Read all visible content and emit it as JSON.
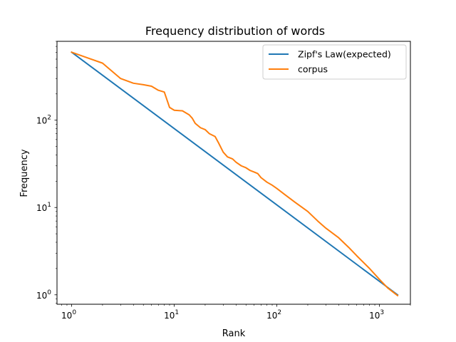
{
  "chart_data": {
    "type": "line",
    "title": "Frequency distribution of words",
    "xlabel": "Rank",
    "ylabel": "Frequency",
    "xscale": "log",
    "yscale": "log",
    "xlim": [
      0.72,
      2000
    ],
    "ylim": [
      0.78,
      800
    ],
    "xticks": [
      {
        "value": 1,
        "base": "10",
        "exp": "0"
      },
      {
        "value": 10,
        "base": "10",
        "exp": "1"
      },
      {
        "value": 100,
        "base": "10",
        "exp": "2"
      },
      {
        "value": 1000,
        "base": "10",
        "exp": "3"
      }
    ],
    "yticks": [
      {
        "value": 1,
        "base": "10",
        "exp": "0"
      },
      {
        "value": 10,
        "base": "10",
        "exp": "1"
      },
      {
        "value": 100,
        "base": "10",
        "exp": "2"
      }
    ],
    "grid": false,
    "legend_position": "top-right",
    "series": [
      {
        "name": "Zipf's Law(expected)",
        "color": "#1f77b4",
        "x": [
          1,
          1500
        ],
        "y": [
          600,
          1
        ]
      },
      {
        "name": "corpus",
        "color": "#ff7f0e",
        "x": [
          1,
          2,
          3,
          4,
          5,
          6,
          7,
          8,
          9,
          10,
          12,
          14,
          15,
          16,
          18,
          20,
          22,
          25,
          27,
          30,
          33,
          37,
          40,
          45,
          50,
          55,
          60,
          65,
          70,
          80,
          90,
          100,
          120,
          150,
          200,
          250,
          300,
          400,
          500,
          600,
          800,
          1000,
          1200,
          1500
        ],
        "y": [
          600,
          450,
          300,
          265,
          255,
          245,
          220,
          210,
          140,
          130,
          128,
          115,
          105,
          92,
          82,
          78,
          70,
          65,
          55,
          43,
          38,
          36,
          33,
          30,
          28.5,
          26.5,
          25.5,
          24.5,
          22,
          19.5,
          18,
          16.5,
          14,
          11.5,
          9,
          7,
          5.8,
          4.5,
          3.5,
          2.8,
          2,
          1.5,
          1.2,
          0.98
        ]
      }
    ]
  }
}
